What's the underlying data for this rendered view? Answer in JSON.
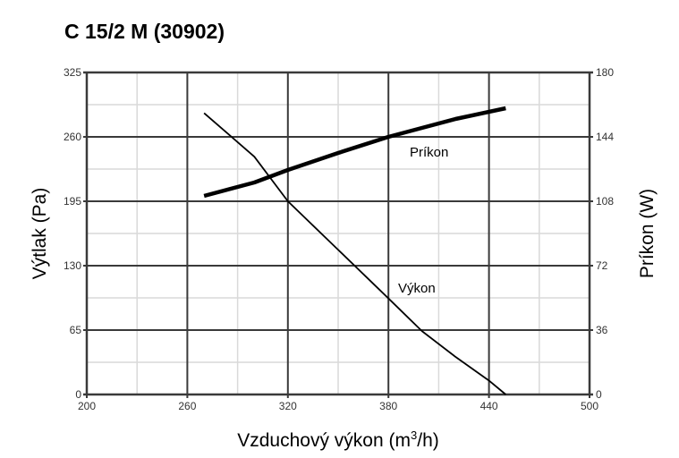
{
  "chart_data": {
    "type": "line",
    "title": "C 15/2 M (30902)",
    "xlabel": "Vzduchový výkon (m",
    "xlabel_sup": "3",
    "xlabel_end": "/h)",
    "ylabel": "Výtlak (Pa)",
    "y2label": "Príkon (W)",
    "xlim": [
      200,
      500
    ],
    "ylim": [
      0,
      325
    ],
    "y2lim": [
      0,
      180
    ],
    "xticks": [
      "200",
      "260",
      "320",
      "380",
      "440",
      "500"
    ],
    "yticks": [
      "0",
      "65",
      "130",
      "195",
      "260",
      "325"
    ],
    "y2ticks": [
      "0",
      "36",
      "72",
      "108",
      "144",
      "180"
    ],
    "grid": true,
    "series": [
      {
        "name": "Výkon",
        "axis": "left",
        "x": [
          270,
          300,
          320,
          350,
          380,
          400,
          420,
          440,
          450
        ],
        "y": [
          284,
          240,
          195,
          146,
          97,
          64,
          38,
          14,
          0
        ]
      },
      {
        "name": "Príkon",
        "axis": "right",
        "x": [
          270,
          300,
          320,
          350,
          380,
          400,
          420,
          450
        ],
        "y": [
          111,
          118.5,
          125.5,
          135,
          144,
          149,
          154,
          160
        ]
      }
    ],
    "annotations": [
      "Príkon",
      "Výkon"
    ]
  },
  "colors": {
    "major_grid": "#3a3a3a",
    "minor_grid": "#d9d9d9",
    "line": "#000000"
  }
}
